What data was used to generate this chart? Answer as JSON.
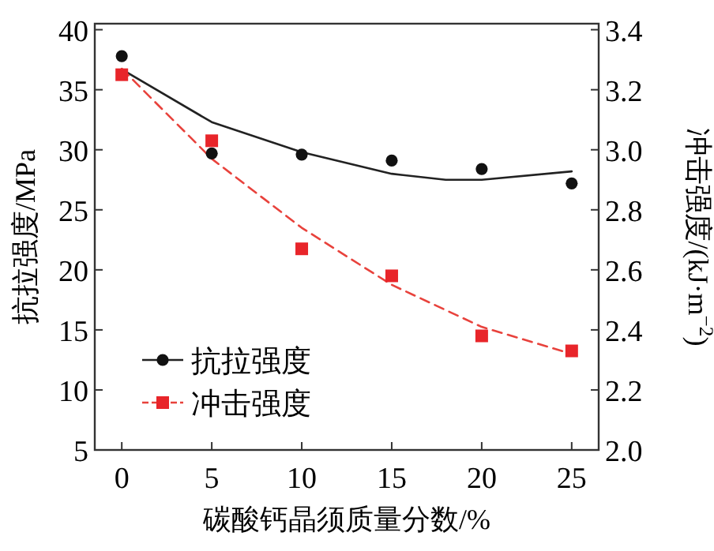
{
  "chart_data": {
    "type": "scatter",
    "xlabel": "碳酸钙晶须质量分数/%",
    "ylabel": "抗拉强度/MPa",
    "y2label": "冲击强度/(kJ·m$^{−2}$)",
    "xlim": [
      -1.5,
      26.5
    ],
    "xticks": [
      0,
      5,
      10,
      15,
      20,
      25
    ],
    "ylim": [
      5,
      40.5
    ],
    "yticks": [
      5,
      10,
      15,
      20,
      25,
      30,
      35,
      40
    ],
    "y2lim": [
      2.0,
      3.42
    ],
    "y2ticks": [
      {
        "value": 2.0,
        "label": "2.0"
      },
      {
        "value": 2.2,
        "label": "2.2"
      },
      {
        "value": 2.4,
        "label": "2.4"
      },
      {
        "value": 2.6,
        "label": "2.6"
      },
      {
        "value": 2.8,
        "label": "2.8"
      },
      {
        "value": 3.0,
        "label": "3.0"
      },
      {
        "value": 3.2,
        "label": "3.2"
      },
      {
        "value": 3.4,
        "label": "3.4"
      }
    ],
    "legend": "bottom left",
    "series": [
      {
        "type": "line",
        "color": "#222222",
        "line_style": "solid",
        "x": [
          0,
          5,
          10,
          15,
          18,
          20,
          25
        ],
        "values": [
          36.7,
          32.3,
          29.8,
          28.0,
          27.5,
          27.5,
          28.2
        ]
      },
      {
        "type": "line",
        "color": "#e8423c",
        "line_style": "dashed",
        "axis": "y2",
        "x": [
          0,
          5,
          10,
          15,
          20,
          25
        ],
        "values": [
          3.27,
          2.97,
          2.74,
          2.55,
          2.41,
          2.32
        ]
      },
      {
        "type": "scatter",
        "name": "抗拉强度",
        "color": "#111111",
        "marker": "circle",
        "x": [
          0,
          5,
          10,
          15,
          20,
          25
        ],
        "values": [
          37.8,
          29.7,
          29.6,
          29.1,
          28.4,
          27.2
        ]
      },
      {
        "type": "scatter",
        "name": "冲击强度",
        "color": "#e8252a",
        "marker": "square",
        "axis": "y2",
        "x": [
          0,
          5,
          10,
          15,
          20,
          25
        ],
        "values": [
          3.25,
          3.03,
          2.67,
          2.58,
          2.38,
          2.33
        ]
      }
    ]
  }
}
